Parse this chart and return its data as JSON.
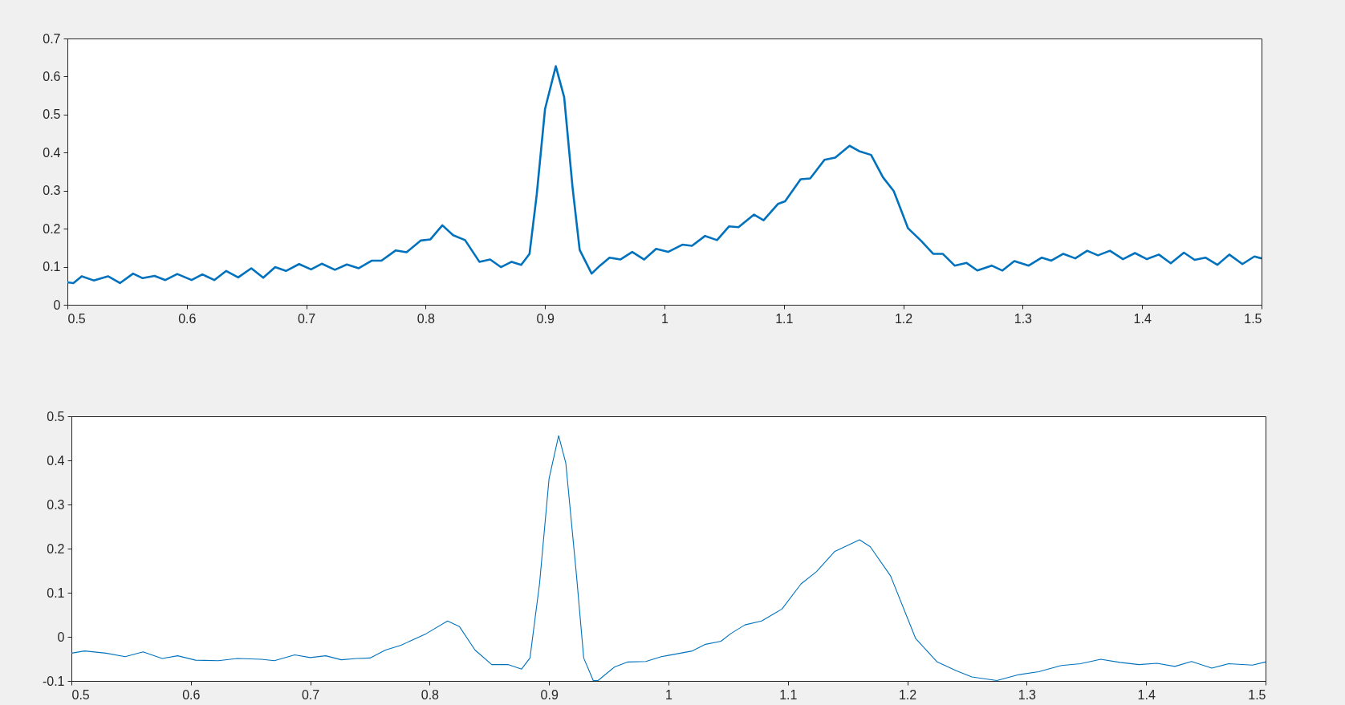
{
  "chart_data": [
    {
      "type": "line",
      "x": [
        0.5,
        0.505,
        0.512,
        0.522,
        0.534,
        0.544,
        0.555,
        0.563,
        0.573,
        0.582,
        0.592,
        0.604,
        0.613,
        0.623,
        0.633,
        0.643,
        0.654,
        0.664,
        0.674,
        0.683,
        0.694,
        0.704,
        0.713,
        0.724,
        0.734,
        0.744,
        0.755,
        0.763,
        0.775,
        0.784,
        0.796,
        0.804,
        0.814,
        0.823,
        0.833,
        0.845,
        0.854,
        0.863,
        0.872,
        0.88,
        0.887,
        0.893,
        0.9,
        0.909,
        0.916,
        0.923,
        0.929,
        0.939,
        0.946,
        0.954,
        0.963,
        0.973,
        0.983,
        0.993,
        1.003,
        1.015,
        1.023,
        1.034,
        1.044,
        1.054,
        1.062,
        1.075,
        1.083,
        1.095,
        1.101,
        1.114,
        1.122,
        1.134,
        1.143,
        1.155,
        1.163,
        1.173,
        1.183,
        1.192,
        1.204,
        1.215,
        1.225,
        1.233,
        1.243,
        1.253,
        1.262,
        1.274,
        1.283,
        1.293,
        1.305,
        1.316,
        1.324,
        1.334,
        1.344,
        1.354,
        1.363,
        1.373,
        1.384,
        1.394,
        1.404,
        1.414,
        1.424,
        1.435,
        1.444,
        1.453,
        1.463,
        1.473,
        1.484,
        1.494,
        1.5
      ],
      "series": [
        {
          "color": "#0072bd",
          "values": [
            0.059,
            0.057,
            0.075,
            0.064,
            0.075,
            0.057,
            0.082,
            0.07,
            0.076,
            0.065,
            0.081,
            0.065,
            0.08,
            0.065,
            0.089,
            0.072,
            0.096,
            0.071,
            0.099,
            0.089,
            0.107,
            0.093,
            0.108,
            0.092,
            0.106,
            0.096,
            0.116,
            0.116,
            0.143,
            0.138,
            0.169,
            0.172,
            0.209,
            0.183,
            0.17,
            0.113,
            0.119,
            0.099,
            0.113,
            0.105,
            0.134,
            0.289,
            0.515,
            0.627,
            0.546,
            0.309,
            0.144,
            0.082,
            0.103,
            0.124,
            0.119,
            0.139,
            0.119,
            0.147,
            0.139,
            0.158,
            0.155,
            0.181,
            0.17,
            0.206,
            0.204,
            0.237,
            0.222,
            0.265,
            0.272,
            0.33,
            0.332,
            0.381,
            0.387,
            0.418,
            0.404,
            0.394,
            0.335,
            0.299,
            0.201,
            0.168,
            0.134,
            0.134,
            0.103,
            0.11,
            0.09,
            0.103,
            0.09,
            0.115,
            0.103,
            0.124,
            0.116,
            0.134,
            0.122,
            0.142,
            0.13,
            0.142,
            0.12,
            0.136,
            0.12,
            0.132,
            0.109,
            0.137,
            0.118,
            0.124,
            0.105,
            0.132,
            0.107,
            0.127,
            0.122
          ]
        }
      ],
      "xlim": [
        0.5,
        1.5
      ],
      "xticks": [
        0.5,
        0.6,
        0.7,
        0.8,
        0.9,
        1,
        1.1,
        1.2,
        1.3,
        1.4,
        1.5
      ],
      "ylim": [
        0,
        0.7
      ],
      "yticks": [
        0,
        0.1,
        0.2,
        0.3,
        0.4,
        0.5,
        0.6,
        0.7
      ]
    },
    {
      "type": "line",
      "x": [
        0.5,
        0.511,
        0.529,
        0.545,
        0.56,
        0.576,
        0.589,
        0.604,
        0.623,
        0.639,
        0.659,
        0.67,
        0.687,
        0.7,
        0.713,
        0.726,
        0.739,
        0.75,
        0.763,
        0.776,
        0.797,
        0.815,
        0.825,
        0.838,
        0.852,
        0.866,
        0.877,
        0.884,
        0.892,
        0.9,
        0.908,
        0.914,
        0.923,
        0.929,
        0.937,
        0.941,
        0.955,
        0.966,
        0.981,
        0.994,
        1.0,
        1.02,
        1.031,
        1.044,
        1.052,
        1.064,
        1.078,
        1.095,
        1.111,
        1.124,
        1.139,
        1.16,
        1.169,
        1.186,
        1.207,
        1.225,
        1.241,
        1.254,
        1.275,
        1.293,
        1.31,
        1.329,
        1.345,
        1.362,
        1.378,
        1.394,
        1.409,
        1.424,
        1.438,
        1.455,
        1.469,
        1.489,
        1.5
      ],
      "series": [
        {
          "color": "#0072bd",
          "values": [
            -0.037,
            -0.032,
            -0.037,
            -0.045,
            -0.034,
            -0.049,
            -0.043,
            -0.053,
            -0.054,
            -0.049,
            -0.051,
            -0.054,
            -0.041,
            -0.047,
            -0.043,
            -0.052,
            -0.049,
            -0.048,
            -0.03,
            -0.019,
            0.007,
            0.036,
            0.023,
            -0.03,
            -0.063,
            -0.063,
            -0.073,
            -0.048,
            0.12,
            0.359,
            0.456,
            0.394,
            0.138,
            -0.048,
            -0.099,
            -0.099,
            -0.068,
            -0.057,
            -0.056,
            -0.045,
            -0.042,
            -0.032,
            -0.017,
            -0.01,
            0.007,
            0.027,
            0.036,
            0.063,
            0.12,
            0.148,
            0.193,
            0.22,
            0.204,
            0.138,
            -0.004,
            -0.057,
            -0.077,
            -0.091,
            -0.099,
            -0.086,
            -0.079,
            -0.065,
            -0.061,
            -0.051,
            -0.058,
            -0.063,
            -0.06,
            -0.067,
            -0.056,
            -0.071,
            -0.061,
            -0.064,
            -0.057
          ]
        }
      ],
      "xlim": [
        0.5,
        1.5
      ],
      "xticks": [
        0.5,
        0.6,
        0.7,
        0.8,
        0.9,
        1,
        1.1,
        1.2,
        1.3,
        1.4,
        1.5
      ],
      "ylim": [
        -0.1,
        0.5
      ],
      "yticks": [
        -0.1,
        0,
        0.1,
        0.2,
        0.3,
        0.4,
        0.5
      ]
    }
  ]
}
